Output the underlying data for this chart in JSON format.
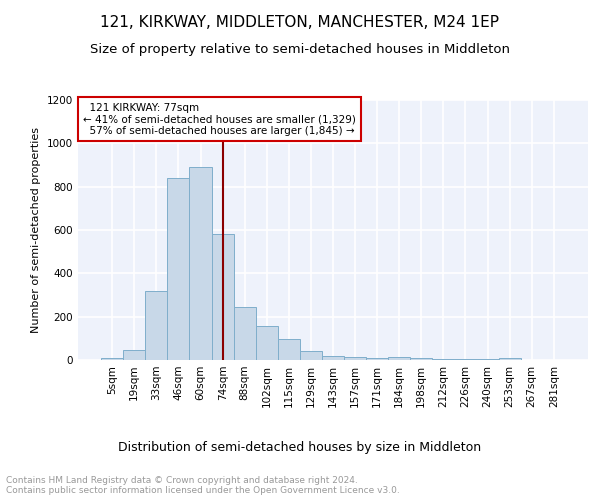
{
  "title": "121, KIRKWAY, MIDDLETON, MANCHESTER, M24 1EP",
  "subtitle": "Size of property relative to semi-detached houses in Middleton",
  "xlabel": "Distribution of semi-detached houses by size in Middleton",
  "ylabel": "Number of semi-detached properties",
  "footer": "Contains HM Land Registry data © Crown copyright and database right 2024.\nContains public sector information licensed under the Open Government Licence v3.0.",
  "bin_labels": [
    "5sqm",
    "19sqm",
    "33sqm",
    "46sqm",
    "60sqm",
    "74sqm",
    "88sqm",
    "102sqm",
    "115sqm",
    "129sqm",
    "143sqm",
    "157sqm",
    "171sqm",
    "184sqm",
    "198sqm",
    "212sqm",
    "226sqm",
    "240sqm",
    "253sqm",
    "267sqm",
    "281sqm"
  ],
  "bin_values": [
    10,
    45,
    320,
    840,
    890,
    580,
    245,
    155,
    95,
    40,
    20,
    15,
    10,
    12,
    10,
    5,
    5,
    5,
    10,
    0,
    0
  ],
  "bar_color": "#c8d8e8",
  "bar_edge_color": "#7faecb",
  "property_label": "121 KIRKWAY: 77sqm",
  "pct_smaller": 41,
  "pct_smaller_count": 1329,
  "pct_larger": 57,
  "pct_larger_count": 1845,
  "vline_x_index": 5.0,
  "vline_color": "#8b0000",
  "annotation_box_edge": "#cc0000",
  "ylim": [
    0,
    1200
  ],
  "yticks": [
    0,
    200,
    400,
    600,
    800,
    1000,
    1200
  ],
  "bg_color": "#eef2fb",
  "grid_color": "#ffffff",
  "title_fontsize": 11,
  "subtitle_fontsize": 9.5,
  "xlabel_fontsize": 9,
  "ylabel_fontsize": 8,
  "tick_fontsize": 7.5,
  "annotation_fontsize": 7.5,
  "footer_fontsize": 6.5
}
